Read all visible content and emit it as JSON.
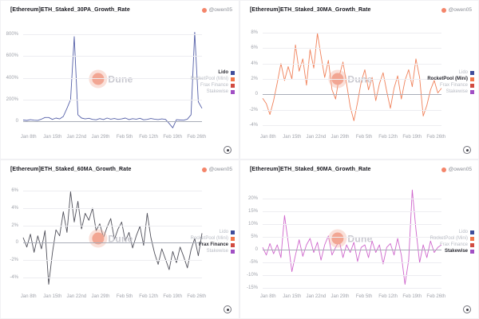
{
  "badge": {
    "handle": "@owen05"
  },
  "watermark": {
    "text": "Dune",
    "dot_color": "#f2a693"
  },
  "legend": {
    "items": [
      {
        "label": "Lido",
        "color": "#3f4d9b"
      },
      {
        "label": "RocketPool (Mini)",
        "color": "#f2774b"
      },
      {
        "label": "Frax Finance",
        "color": "#d14b41"
      },
      {
        "label": "Stakewise",
        "color": "#a14fc4"
      }
    ]
  },
  "chart_data": [
    {
      "type": "line",
      "title": "[Ethereum]ETH_Staked_30PA_Growth_Rate",
      "legend_position": "right",
      "grid": true,
      "highlight_index": 0,
      "line_color": "#5560a8",
      "ylim": [
        -80,
        860
      ],
      "y_ticks": [
        {
          "label": "800%",
          "value": 800
        },
        {
          "label": "600%",
          "value": 600
        },
        {
          "label": "400%",
          "value": 400
        },
        {
          "label": "200%",
          "value": 200
        },
        {
          "label": "0",
          "value": 0
        }
      ],
      "x_ticks": [
        "Jan 8th",
        "Jan 15th",
        "Jan 22nd",
        "Jan 29th",
        "Feb 5th",
        "Feb 12th",
        "Feb 19th",
        "Feb 26th"
      ],
      "series": [
        {
          "name": "Lido",
          "values": [
            12,
            8,
            15,
            10,
            9,
            20,
            35,
            35,
            18,
            30,
            22,
            45,
            120,
            200,
            780,
            60,
            30,
            22,
            28,
            18,
            14,
            25,
            16,
            30,
            20,
            26,
            18,
            22,
            30,
            16,
            24,
            20,
            28,
            14,
            18,
            26,
            20,
            16,
            22,
            18,
            -20,
            -60,
            15,
            12,
            10,
            20,
            60,
            820,
            180,
            120
          ]
        }
      ]
    },
    {
      "type": "line",
      "title": "[Ethereum]ETH_Staked_30MA_Growth_Rate",
      "legend_position": "right",
      "grid": true,
      "highlight_index": 1,
      "line_color": "#f0815a",
      "ylim": [
        -4.6,
        8.6
      ],
      "y_ticks": [
        {
          "label": "8%",
          "value": 8
        },
        {
          "label": "6%",
          "value": 6
        },
        {
          "label": "4%",
          "value": 4
        },
        {
          "label": "2%",
          "value": 2
        },
        {
          "label": "0",
          "value": 0
        },
        {
          "label": "-2%",
          "value": -2
        },
        {
          "label": "-4%",
          "value": -4
        }
      ],
      "x_ticks": [
        "Jan 8th",
        "Jan 15th",
        "Jan 22nd",
        "Jan 29th",
        "Feb 5th",
        "Feb 12th",
        "Feb 19th",
        "Feb 26th"
      ],
      "series": [
        {
          "name": "RocketPool (Mini)",
          "values": [
            -0.5,
            -1.2,
            -2.6,
            -0.8,
            1.5,
            4.0,
            1.8,
            3.6,
            2.0,
            6.4,
            3.0,
            4.6,
            1.2,
            5.8,
            3.4,
            7.9,
            5.0,
            2.2,
            4.4,
            0.6,
            -0.6,
            2.4,
            4.2,
            1.4,
            -1.6,
            -3.4,
            -1.0,
            1.6,
            3.2,
            0.6,
            2.2,
            -0.8,
            1.4,
            2.8,
            0.4,
            -1.8,
            0.8,
            2.4,
            -0.6,
            1.8,
            3.2,
            1.0,
            4.6,
            2.2,
            -2.8,
            -1.4,
            0.6,
            1.8,
            0.2,
            0.8
          ]
        }
      ]
    },
    {
      "type": "line",
      "title": "[Ethereum]ETH_Staked_60MA_Growth_Rate",
      "legend_position": "right",
      "grid": true,
      "highlight_index": 2,
      "line_color": "#50505a",
      "ylim": [
        -5.4,
        6.4
      ],
      "y_ticks": [
        {
          "label": "6%",
          "value": 6
        },
        {
          "label": "4%",
          "value": 4
        },
        {
          "label": "2%",
          "value": 2
        },
        {
          "label": "0",
          "value": 0
        },
        {
          "label": "-2%",
          "value": -2
        },
        {
          "label": "-4%",
          "value": -4
        }
      ],
      "x_ticks": [
        "Jan 8th",
        "Jan 15th",
        "Jan 22nd",
        "Jan 29th",
        "Feb 5th",
        "Feb 12th",
        "Feb 19th",
        "Feb 26th"
      ],
      "series": [
        {
          "name": "Frax Finance",
          "values": [
            0.6,
            -0.5,
            1.0,
            -1.1,
            0.8,
            -0.7,
            1.4,
            -4.8,
            -1.2,
            1.5,
            0.8,
            3.6,
            1.2,
            5.9,
            2.4,
            4.8,
            1.6,
            3.4,
            2.6,
            4.0,
            1.4,
            2.2,
            0.6,
            1.8,
            2.8,
            0.4,
            1.6,
            2.4,
            0.2,
            1.2,
            -0.6,
            0.8,
            1.9,
            -0.3,
            3.4,
            0.6,
            -1.2,
            -2.5,
            -0.7,
            -1.9,
            -3.1,
            -1.0,
            -2.3,
            -0.5,
            -1.6,
            -2.9,
            -0.8,
            0.5,
            -1.5,
            1.1
          ]
        }
      ]
    },
    {
      "type": "line",
      "title": "[Ethereum]ETH_Staked_90MA_Growth_Rate",
      "legend_position": "right",
      "grid": true,
      "highlight_index": 3,
      "line_color": "#cf66cc",
      "ylim": [
        -15.5,
        24.5
      ],
      "y_ticks": [
        {
          "label": "20%",
          "value": 20
        },
        {
          "label": "15%",
          "value": 15
        },
        {
          "label": "10%",
          "value": 10
        },
        {
          "label": "5%",
          "value": 5
        },
        {
          "label": "0",
          "value": 0
        },
        {
          "label": "-5%",
          "value": -5
        },
        {
          "label": "-10%",
          "value": -10
        },
        {
          "label": "-15%",
          "value": -15
        }
      ],
      "x_ticks": [
        "Jan 8th",
        "Jan 15th",
        "Jan 22nd",
        "Jan 29th",
        "Feb 5th",
        "Feb 12th",
        "Feb 19th",
        "Feb 26th"
      ],
      "series": [
        {
          "name": "Stakewise",
          "values": [
            1.0,
            -2.0,
            2.5,
            -1.5,
            2.0,
            -3.0,
            13.5,
            3.0,
            -8.5,
            -2.0,
            4.0,
            -2.5,
            2.0,
            4.5,
            -1.0,
            3.0,
            -4.0,
            2.0,
            5.5,
            -2.0,
            1.0,
            3.5,
            -3.0,
            2.0,
            -1.0,
            3.0,
            -4.5,
            1.0,
            2.0,
            -3.0,
            3.5,
            -1.0,
            2.0,
            -5.5,
            1.0,
            2.5,
            -2.0,
            4.5,
            -2.0,
            -13.5,
            -4.0,
            23.5,
            8.0,
            -5.0,
            2.0,
            -3.0,
            3.5,
            -1.0,
            1.0,
            2.0
          ]
        }
      ]
    }
  ]
}
